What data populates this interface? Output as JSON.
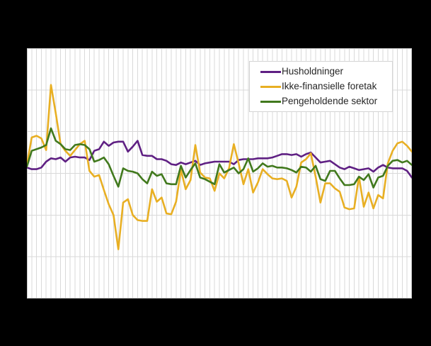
{
  "page": {
    "background_color": "#000000"
  },
  "plot": {
    "background_color": "#ffffff",
    "grid_color": "#d9d9d9",
    "border_color": "#c9c9c9"
  },
  "legend": {
    "background_color": "#ffffff",
    "border_color": "#d4d4d4",
    "text_color": "#262626"
  },
  "chart_data": {
    "type": "line",
    "title": "",
    "xlabel": "",
    "ylabel": "",
    "axis_tick_labels_visible": false,
    "grid": true,
    "x_gridline_at_every_point": true,
    "x_count": 81,
    "ylim": [
      -10,
      20
    ],
    "y_gridline_step": 5,
    "legend_position": "top-right",
    "series": [
      {
        "name": "Husholdninger",
        "color": "#5f2083",
        "values": [
          5.7,
          5.5,
          5.5,
          5.7,
          6.4,
          6.8,
          6.7,
          6.9,
          6.4,
          6.9,
          7.0,
          6.9,
          6.9,
          6.6,
          7.7,
          7.9,
          8.8,
          8.3,
          8.7,
          8.8,
          8.8,
          7.6,
          8.2,
          8.9,
          7.2,
          7.1,
          7.1,
          6.7,
          6.7,
          6.5,
          6.1,
          6.0,
          6.3,
          6.1,
          6.3,
          6.5,
          6.0,
          6.2,
          6.3,
          6.4,
          6.4,
          6.4,
          6.4,
          6.1,
          6.6,
          6.7,
          6.7,
          6.7,
          6.8,
          6.8,
          6.8,
          6.9,
          7.1,
          7.3,
          7.3,
          7.2,
          7.3,
          7.0,
          7.3,
          7.5,
          6.9,
          6.3,
          6.4,
          6.5,
          6.1,
          5.7,
          5.5,
          5.8,
          5.6,
          5.4,
          5.5,
          5.6,
          5.2,
          5.7,
          6.0,
          5.7,
          5.6,
          5.6,
          5.6,
          5.3,
          4.5
        ]
      },
      {
        "name": "Ikke-finansielle foretak",
        "color": "#e8af23",
        "values": [
          6.0,
          9.3,
          9.5,
          9.2,
          7.8,
          15.6,
          12.2,
          8.5,
          7.7,
          7.1,
          7.8,
          8.5,
          8.9,
          5.3,
          4.6,
          4.8,
          3.0,
          1.3,
          0.0,
          -4.1,
          1.5,
          1.9,
          0.0,
          -0.6,
          -0.7,
          -0.7,
          3.1,
          1.6,
          2.1,
          0.2,
          0.1,
          1.6,
          5.4,
          3.1,
          4.2,
          8.4,
          5.1,
          4.5,
          4.4,
          2.9,
          5.0,
          4.4,
          5.6,
          8.5,
          6.2,
          3.7,
          5.5,
          2.7,
          3.9,
          5.5,
          4.9,
          4.4,
          4.3,
          4.4,
          4.1,
          2.1,
          3.4,
          6.3,
          6.7,
          7.4,
          4.6,
          1.5,
          3.8,
          3.8,
          3.2,
          2.8,
          0.9,
          0.7,
          0.8,
          4.6,
          1.0,
          2.7,
          0.8,
          2.4,
          2.0,
          6.2,
          7.7,
          8.6,
          8.8,
          8.3,
          7.6
        ]
      },
      {
        "name": "Pengeholdende sektor",
        "color": "#41791d",
        "values": [
          5.8,
          7.7,
          7.9,
          8.1,
          8.4,
          10.4,
          8.9,
          8.5,
          7.9,
          7.8,
          8.4,
          8.5,
          8.4,
          7.9,
          6.4,
          6.6,
          6.9,
          6.1,
          4.7,
          3.4,
          5.6,
          5.3,
          5.2,
          5.0,
          4.3,
          3.8,
          5.2,
          4.7,
          4.9,
          3.8,
          3.7,
          3.7,
          5.9,
          4.5,
          5.4,
          6.2,
          4.5,
          4.3,
          4.0,
          3.7,
          6.1,
          5.1,
          5.4,
          5.7,
          5.0,
          5.5,
          6.8,
          5.2,
          5.6,
          6.2,
          5.8,
          5.9,
          5.7,
          5.7,
          5.6,
          5.4,
          5.1,
          5.8,
          5.7,
          5.2,
          5.9,
          4.3,
          4.1,
          5.3,
          5.3,
          4.4,
          3.6,
          3.6,
          3.7,
          4.6,
          4.2,
          4.9,
          3.3,
          4.5,
          4.7,
          5.9,
          6.5,
          6.6,
          6.3,
          6.5,
          6.0
        ]
      }
    ]
  }
}
